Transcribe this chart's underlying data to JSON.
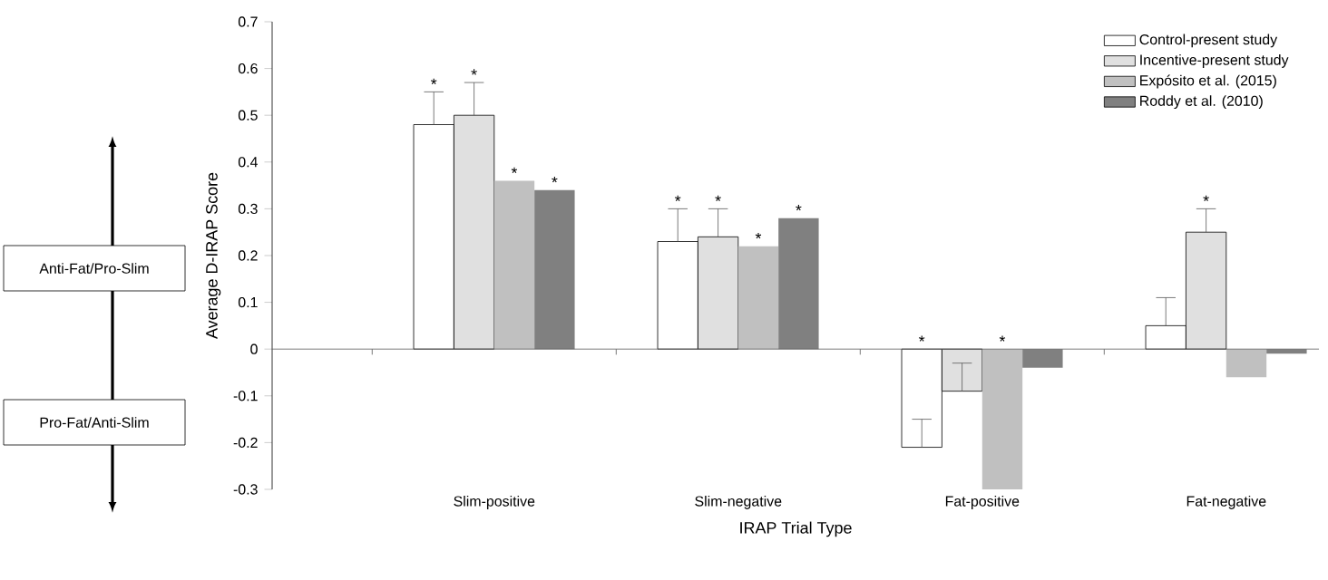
{
  "chart_data": {
    "type": "bar",
    "xlabel": "IRAP Trial Type",
    "ylabel": "Average D-IRAP Score",
    "categories": [
      "Slim-positive",
      "Slim-negative",
      "Fat-positive",
      "Fat-negative"
    ],
    "series": [
      {
        "name": "Control-present study",
        "color": "#ffffff",
        "values": [
          0.48,
          0.23,
          -0.21,
          0.05
        ],
        "errors": [
          [
            0.48,
            0.55
          ],
          [
            0.23,
            0.3
          ],
          [
            -0.21,
            -0.15
          ],
          [
            0.05,
            0.11
          ]
        ],
        "value_labels": [
          "*",
          "*",
          "*",
          null
        ]
      },
      {
        "name": "Incentive-present study",
        "color": "#e0e0e0",
        "values": [
          0.5,
          0.24,
          -0.09,
          0.25
        ],
        "errors": [
          [
            0.5,
            0.57
          ],
          [
            0.24,
            0.3
          ],
          [
            -0.09,
            -0.03
          ],
          [
            0.25,
            0.3
          ]
        ],
        "value_labels": [
          "*",
          "*",
          null,
          "*"
        ]
      },
      {
        "name": "Expósito et al. (2015)",
        "color": "#c0c0c0",
        "values": [
          0.36,
          0.22,
          -0.3,
          -0.06
        ],
        "value_labels": [
          "*",
          "*",
          "*",
          null
        ]
      },
      {
        "name": "Roddy et al. (2010)",
        "color": "#808080",
        "values": [
          0.34,
          0.28,
          -0.04,
          -0.01
        ],
        "value_labels": [
          "*",
          "*",
          null,
          null
        ]
      }
    ],
    "ylim": [
      -0.3,
      0.7
    ],
    "yticks": [
      -0.3,
      -0.2,
      -0.1,
      0,
      0.1,
      0.2,
      0.3,
      0.4,
      0.5,
      0.6,
      0.7
    ],
    "legend": "top right",
    "annotations": [
      "Anti-Fat/Pro-Slim",
      "Pro-Fat/Anti-Slim"
    ]
  }
}
